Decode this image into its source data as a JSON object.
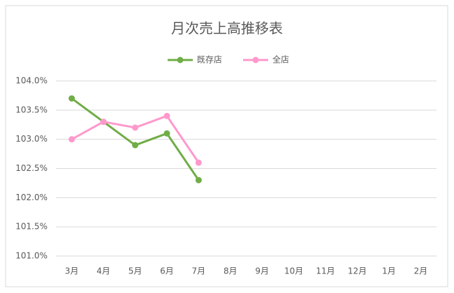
{
  "chart_data": {
    "type": "line",
    "title": "月次売上高推移表",
    "categories": [
      "3月",
      "4月",
      "5月",
      "6月",
      "7月",
      "8月",
      "9月",
      "10月",
      "11月",
      "12月",
      "1月",
      "2月"
    ],
    "series": [
      {
        "name": "既存店",
        "color": "#70ad47",
        "values": [
          103.7,
          103.3,
          102.9,
          103.1,
          102.3,
          null,
          null,
          null,
          null,
          null,
          null,
          null
        ]
      },
      {
        "name": "全店",
        "color": "#ff99cc",
        "values": [
          103.0,
          103.3,
          103.2,
          103.4,
          102.6,
          null,
          null,
          null,
          null,
          null,
          null,
          null
        ]
      }
    ],
    "ylim": [
      101,
      104
    ],
    "yticks": [
      {
        "value": 101,
        "label": "101.0%"
      },
      {
        "value": 101.5,
        "label": "101.5%"
      },
      {
        "value": 102,
        "label": "102.0%"
      },
      {
        "value": 102.5,
        "label": "102.5%"
      },
      {
        "value": 103,
        "label": "103.0%"
      },
      {
        "value": 103.5,
        "label": "103.5%"
      },
      {
        "value": 104,
        "label": "104.0%"
      }
    ],
    "grid": true,
    "legend": "top"
  }
}
